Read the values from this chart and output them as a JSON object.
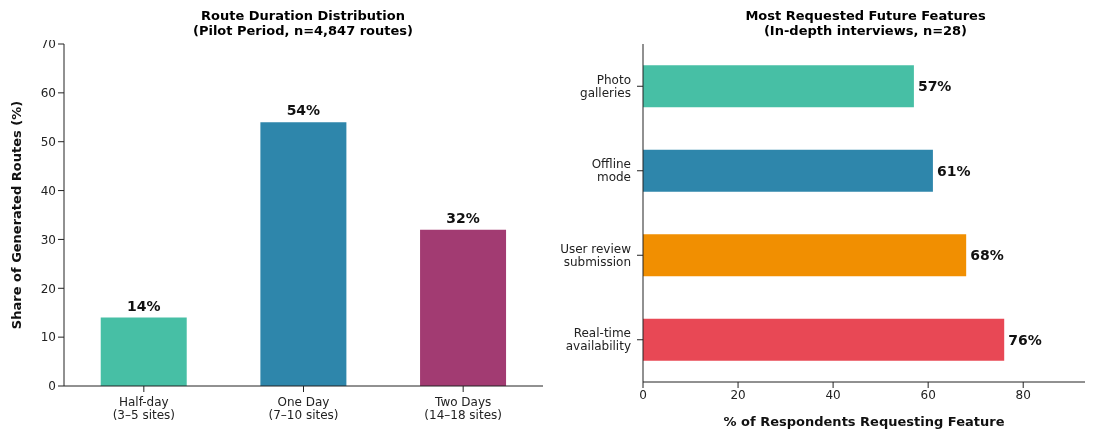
{
  "chart_data": [
    {
      "type": "bar",
      "title": "Route Duration Distribution\n(Pilot Period, n=4,847 routes)",
      "ylabel": "Share of Generated Routes (%)",
      "categories": [
        "Half-day\n(3–5 sites)",
        "One Day\n(7–10 sites)",
        "Two Days\n(14–18 sites)"
      ],
      "values": [
        14,
        54,
        32
      ],
      "colors": [
        "#47bfa5",
        "#2e86ab",
        "#a23b72"
      ],
      "value_labels": [
        "14%",
        "54%",
        "32%"
      ],
      "ylim": [
        0,
        70
      ],
      "yticks": [
        0,
        10,
        20,
        30,
        40,
        50,
        60,
        70
      ]
    },
    {
      "type": "bar",
      "orientation": "horizontal",
      "title": "Most Requested Future Features\n(In-depth interviews, n=28)",
      "xlabel": "% of Respondents Requesting Feature",
      "categories": [
        "Photo\ngalleries",
        "Offline\nmode",
        "User review\nsubmission",
        "Real-time\navailability"
      ],
      "values": [
        57,
        61,
        68,
        76
      ],
      "colors": [
        "#47bfa5",
        "#2e86ab",
        "#f18f01",
        "#e84855"
      ],
      "value_labels": [
        "57%",
        "61%",
        "68%",
        "76%"
      ],
      "xlim": [
        0,
        93
      ],
      "xticks": [
        0,
        20,
        40,
        60,
        80
      ]
    }
  ]
}
